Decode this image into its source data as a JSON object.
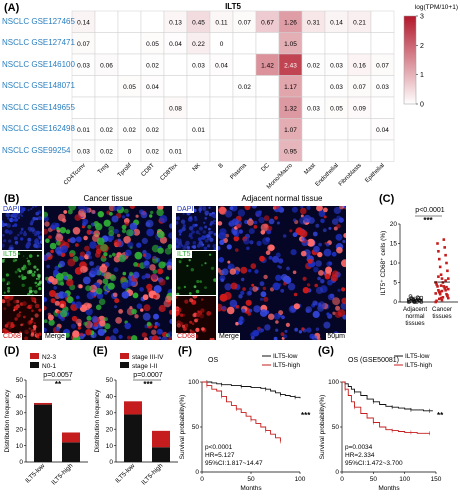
{
  "panels": {
    "A": "(A)",
    "B": "(B)",
    "C": "(C)",
    "D": "(D)",
    "E": "(E)",
    "F": "(F)",
    "G": "(G)"
  },
  "heatmap": {
    "title": "ILT5",
    "legend_title": "log(TPM/10+1)",
    "legend_ticks": [
      "3",
      "2",
      "1",
      "0"
    ],
    "legend_max": 3,
    "rows": [
      "NSCLC GSE127465",
      "NSCLC GSE127471",
      "NSCLC GSE146100",
      "NSCLC GSE148071",
      "NSCLC GSE149655",
      "NSCLC GSE162498",
      "NSCLC GSE99254"
    ],
    "cols": [
      "CD4Tconv",
      "Treg",
      "Tprolif",
      "CD8T",
      "CD8Tex",
      "NK",
      "B",
      "Plasma",
      "DC",
      "Mono/Macro",
      "Mast",
      "Endothelial",
      "Fibroblasts",
      "Epithelial"
    ],
    "values": [
      [
        "0.14",
        "",
        "",
        "",
        "0.13",
        "0.45",
        "0.11",
        "0.07",
        "0.67",
        "1.26",
        "0.31",
        "0.14",
        "0.21",
        ""
      ],
      [
        "0.07",
        "",
        "",
        "0.05",
        "0.04",
        "0.22",
        "0",
        "",
        "",
        "1.05",
        "",
        "",
        "",
        ""
      ],
      [
        "0.03",
        "0.06",
        "",
        "0.02",
        "",
        "0.03",
        "0.04",
        "",
        "1.42",
        "2.43",
        "0.02",
        "0.03",
        "0.16",
        "0.07"
      ],
      [
        "",
        "",
        "0.05",
        "0.04",
        "",
        "",
        "",
        "0.02",
        "",
        "1.17",
        "",
        "0.03",
        "0.07",
        "0.03"
      ],
      [
        "",
        "",
        "",
        "",
        "0.08",
        "",
        "",
        "",
        "",
        "1.32",
        "0.03",
        "0.05",
        "0.09",
        ""
      ],
      [
        "0.01",
        "0.02",
        "0.02",
        "0.02",
        "",
        "0.01",
        "",
        "",
        "",
        "1.07",
        "",
        "",
        "",
        "0.04"
      ],
      [
        "0.03",
        "0.02",
        "0",
        "0.02",
        "0.01",
        "",
        "",
        "",
        "",
        "0.95",
        "",
        "",
        "",
        ""
      ]
    ]
  },
  "micro": {
    "cancer_title": "Cancer tissue",
    "normal_title": "Adjacent normal tissue",
    "dapi": "DAPI",
    "ilt5": "ILT5",
    "cd68": "CD68",
    "merge": "Merge",
    "scale": "50μm",
    "colors": {
      "dapi": "#1c2fbf",
      "ilt5": "#2fae35",
      "cd68": "#d01a1a"
    }
  },
  "chart_data": [
    {
      "id": "C",
      "type": "scatter",
      "title": "",
      "ylabel": "ILT5⁺ CD68⁺ cells (%)",
      "ylim": [
        0,
        20
      ],
      "yticks": [
        0,
        5,
        10,
        15,
        20
      ],
      "categories": [
        "Adjacent normal tissues",
        "Cancer tissues"
      ],
      "category_lines": [
        [
          "Adjacent",
          "normal",
          "tissues"
        ],
        [
          "Cancer",
          "tissues"
        ]
      ],
      "pvalue": "p<0.0001",
      "sig": "***",
      "series": [
        {
          "values": [
            0,
            0,
            0,
            0.2,
            0.3,
            0.5,
            0.5,
            0.8,
            1,
            1,
            1.2,
            1.5,
            0,
            0.1,
            0.4,
            0.6,
            0.9,
            1.1,
            0,
            0.3,
            0.7
          ]
        },
        {
          "values": [
            0,
            0.5,
            1,
            1,
            1.5,
            2,
            2,
            2.5,
            3,
            3,
            3.5,
            4,
            4,
            4.5,
            5,
            5,
            6,
            6,
            7,
            8,
            9,
            10,
            11,
            12,
            13,
            14,
            15,
            16,
            0.3,
            1.2,
            2.2,
            2.8,
            3.3,
            4.2,
            1.7,
            2.6,
            3.8,
            0.8,
            5.5,
            6.5
          ]
        }
      ]
    },
    {
      "id": "D",
      "type": "bar",
      "stacked": true,
      "ylabel": "Distribution frequency",
      "ylim": [
        0,
        50
      ],
      "yticks": [
        0,
        10,
        20,
        30,
        40,
        50
      ],
      "categories": [
        "ILT5-low",
        "ILT5-high"
      ],
      "pvalue": "p=0.0057",
      "sig": "**",
      "series": [
        {
          "name": "N0-1",
          "values": [
            35,
            12
          ],
          "color": "#111111"
        },
        {
          "name": "N2-3",
          "values": [
            1,
            6
          ],
          "color": "#c51d1d"
        }
      ]
    },
    {
      "id": "E",
      "type": "bar",
      "stacked": true,
      "ylabel": "Distribution frequency",
      "ylim": [
        0,
        50
      ],
      "yticks": [
        0,
        10,
        20,
        30,
        40,
        50
      ],
      "categories": [
        "ILT5-low",
        "ILT5-high"
      ],
      "pvalue": "p=0.0007",
      "sig": "***",
      "series": [
        {
          "name": "stage I-II",
          "values": [
            29,
            9
          ],
          "color": "#111111"
        },
        {
          "name": "stage III-IV",
          "values": [
            8,
            10
          ],
          "color": "#c51d1d"
        }
      ]
    },
    {
      "id": "F",
      "type": "line",
      "title": "OS",
      "xlabel": "Months",
      "ylabel": "Survival probability(%)",
      "xlim": [
        0,
        100
      ],
      "ylim": [
        0,
        100
      ],
      "xticks": [
        0,
        50,
        100
      ],
      "yticks": [
        0,
        50,
        100
      ],
      "sig": "***",
      "stats": [
        "p<0.0001",
        "HR=5.127",
        "95%CI:1.817~14.47"
      ],
      "series": [
        {
          "name": "ILT5-low",
          "color": "#111111",
          "x": [
            0,
            5,
            10,
            15,
            20,
            25,
            30,
            40,
            50,
            60,
            65,
            70,
            75,
            80,
            85,
            90,
            95,
            100
          ],
          "y": [
            100,
            100,
            99,
            98,
            97,
            97,
            96,
            95,
            94,
            93,
            92,
            90,
            88,
            86,
            85,
            84,
            83,
            82
          ]
        },
        {
          "name": "ILT5-high",
          "color": "#c51d1d",
          "x": [
            0,
            5,
            10,
            15,
            20,
            25,
            30,
            35,
            40,
            45,
            50,
            55,
            60,
            65,
            70,
            75,
            80
          ],
          "y": [
            100,
            96,
            92,
            90,
            84,
            78,
            74,
            70,
            66,
            62,
            58,
            54,
            50,
            46,
            42,
            38,
            34
          ]
        }
      ]
    },
    {
      "id": "G",
      "type": "line",
      "title": "OS (GSE50081)",
      "xlabel": "Months",
      "ylabel": "Survival probability(%)",
      "xlim": [
        0,
        150
      ],
      "ylim": [
        0,
        100
      ],
      "xticks": [
        0,
        50,
        100,
        150
      ],
      "yticks": [
        0,
        50,
        100
      ],
      "sig": "**",
      "stats": [
        "p=0.0034",
        "HR=2.334",
        "95%CI:1.472~3.700"
      ],
      "series": [
        {
          "name": "ILT5-low",
          "color": "#111111",
          "x": [
            0,
            5,
            10,
            15,
            20,
            30,
            40,
            50,
            60,
            70,
            80,
            90,
            100,
            110,
            120,
            130,
            140,
            145
          ],
          "y": [
            100,
            98,
            95,
            92,
            89,
            85,
            81,
            78,
            75,
            73,
            72,
            71,
            70,
            69,
            69,
            68,
            68,
            68
          ]
        },
        {
          "name": "ILT5-high",
          "color": "#c51d1d",
          "x": [
            0,
            5,
            10,
            15,
            20,
            30,
            40,
            50,
            60,
            70,
            80,
            90,
            100,
            110,
            120,
            130,
            140
          ],
          "y": [
            100,
            92,
            85,
            78,
            72,
            65,
            60,
            55,
            50,
            47,
            46,
            45,
            44,
            44,
            43,
            43,
            43
          ]
        }
      ]
    }
  ]
}
